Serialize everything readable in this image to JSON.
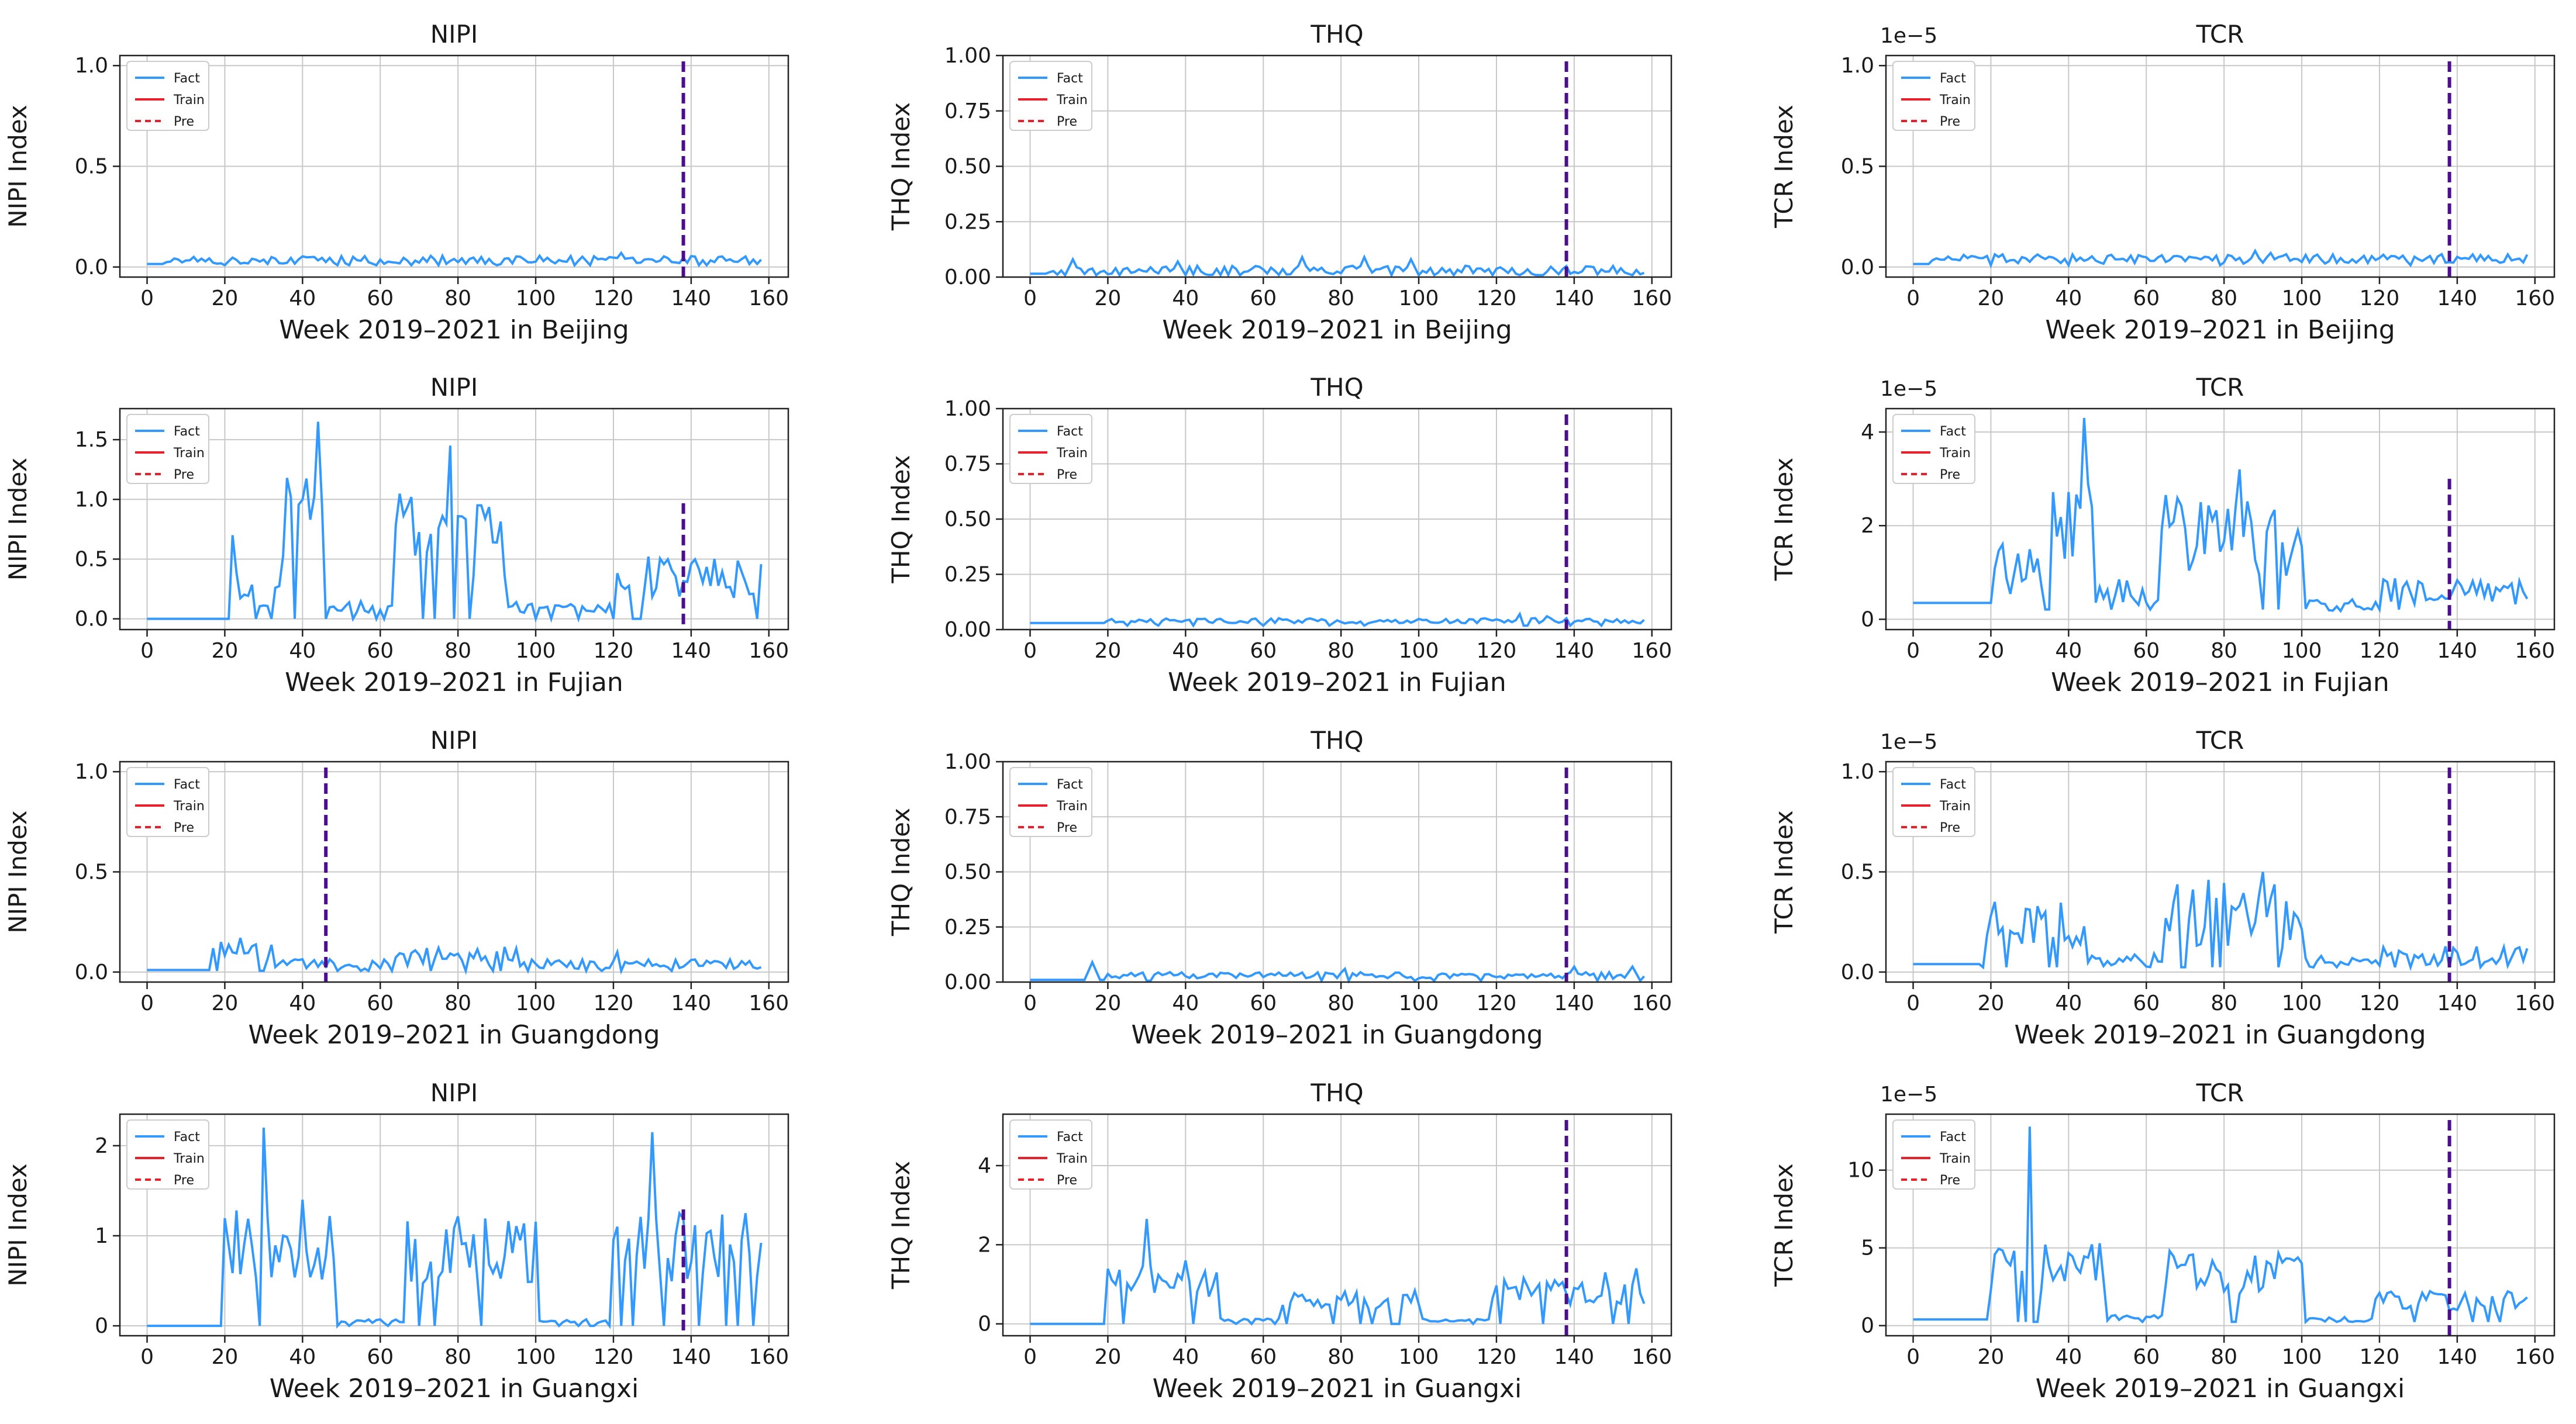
{
  "figure_title": "",
  "legend_labels": [
    "Fact",
    "Train",
    "Pre"
  ],
  "colors": {
    "fact": "#3399ff",
    "train": "#e8202a",
    "pre": "#e8202a",
    "split_line": "#4b0f8c",
    "grid": "#c8c8c8",
    "axes": "#222222"
  },
  "chart_data": [
    {
      "id": "nipi-beijing",
      "type": "line",
      "title": "NIPI",
      "xlabel": "Week 2019–2021 in Beijing",
      "ylabel": "NIPI Index",
      "xlim": [
        -7,
        165
      ],
      "xticks": [
        0,
        20,
        40,
        60,
        80,
        100,
        120,
        140,
        160
      ],
      "ylim": [
        -0.05,
        1.05
      ],
      "yticks": [
        0.0,
        0.5,
        1.0
      ],
      "ytick_labels": [
        "0.0",
        "0.5",
        "1.0"
      ],
      "offset_text": "",
      "split_week": 138,
      "profile": "bj_nipi",
      "series": [
        {
          "name": "Fact",
          "role": "fact",
          "color": "#3399ff"
        },
        {
          "name": "Train",
          "role": "train",
          "color": "#e8202a"
        },
        {
          "name": "Pre",
          "role": "pre",
          "color": "#e8202a"
        }
      ]
    },
    {
      "id": "thq-beijing",
      "type": "line",
      "title": "THQ",
      "xlabel": "Week 2019–2021 in Beijing",
      "ylabel": "THQ Index",
      "xlim": [
        -7,
        165
      ],
      "xticks": [
        0,
        20,
        40,
        60,
        80,
        100,
        120,
        140,
        160
      ],
      "ylim": [
        0,
        1.0
      ],
      "yticks": [
        0.0,
        0.25,
        0.5,
        0.75,
        1.0
      ],
      "ytick_labels": [
        "0.00",
        "0.25",
        "0.50",
        "0.75",
        "1.00"
      ],
      "offset_text": "",
      "split_week": 138,
      "profile": "bj_thq",
      "series": [
        {
          "name": "Fact",
          "role": "fact",
          "color": "#3399ff"
        },
        {
          "name": "Train",
          "role": "train",
          "color": "#e8202a"
        },
        {
          "name": "Pre",
          "role": "pre",
          "color": "#e8202a"
        }
      ]
    },
    {
      "id": "tcr-beijing",
      "type": "line",
      "title": "TCR",
      "xlabel": "Week 2019–2021 in Beijing",
      "ylabel": "TCR Index",
      "xlim": [
        -7,
        165
      ],
      "xticks": [
        0,
        20,
        40,
        60,
        80,
        100,
        120,
        140,
        160
      ],
      "ylim": [
        -0.05,
        1.05
      ],
      "yticks": [
        0.0,
        0.5,
        1.0
      ],
      "ytick_labels": [
        "0.0",
        "0.5",
        "1.0"
      ],
      "offset_text": "1e−5",
      "split_week": 138,
      "profile": "bj_tcr",
      "series": [
        {
          "name": "Fact",
          "role": "fact",
          "color": "#3399ff"
        },
        {
          "name": "Train",
          "role": "train",
          "color": "#e8202a"
        },
        {
          "name": "Pre",
          "role": "pre",
          "color": "#e8202a"
        }
      ]
    },
    {
      "id": "nipi-fujian",
      "type": "line",
      "title": "NIPI",
      "xlabel": "Week 2019–2021 in Fujian",
      "ylabel": "NIPI Index",
      "xlim": [
        -7,
        165
      ],
      "xticks": [
        0,
        20,
        40,
        60,
        80,
        100,
        120,
        140,
        160
      ],
      "ylim": [
        -0.09,
        1.76
      ],
      "yticks": [
        0.0,
        0.5,
        1.0,
        1.5
      ],
      "ytick_labels": [
        "0.0",
        "0.5",
        "1.0",
        "1.5"
      ],
      "offset_text": "",
      "split_week": 138,
      "profile": "fj_nipi",
      "series": [
        {
          "name": "Fact",
          "role": "fact",
          "color": "#3399ff"
        },
        {
          "name": "Train",
          "role": "train",
          "color": "#e8202a"
        },
        {
          "name": "Pre",
          "role": "pre",
          "color": "#e8202a"
        }
      ]
    },
    {
      "id": "thq-fujian",
      "type": "line",
      "title": "THQ",
      "xlabel": "Week 2019–2021 in Fujian",
      "ylabel": "THQ Index",
      "xlim": [
        -7,
        165
      ],
      "xticks": [
        0,
        20,
        40,
        60,
        80,
        100,
        120,
        140,
        160
      ],
      "ylim": [
        0,
        1.0
      ],
      "yticks": [
        0.0,
        0.25,
        0.5,
        0.75,
        1.0
      ],
      "ytick_labels": [
        "0.00",
        "0.25",
        "0.50",
        "0.75",
        "1.00"
      ],
      "offset_text": "",
      "split_week": 138,
      "profile": "fj_thq",
      "series": [
        {
          "name": "Fact",
          "role": "fact",
          "color": "#3399ff"
        },
        {
          "name": "Train",
          "role": "train",
          "color": "#e8202a"
        },
        {
          "name": "Pre",
          "role": "pre",
          "color": "#e8202a"
        }
      ]
    },
    {
      "id": "tcr-fujian",
      "type": "line",
      "title": "TCR",
      "xlabel": "Week 2019–2021 in Fujian",
      "ylabel": "TCR Index",
      "xlim": [
        -7,
        165
      ],
      "xticks": [
        0,
        20,
        40,
        60,
        80,
        100,
        120,
        140,
        160
      ],
      "ylim": [
        -0.22,
        4.5
      ],
      "yticks": [
        0,
        2,
        4
      ],
      "ytick_labels": [
        "0",
        "2",
        "4"
      ],
      "offset_text": "1e−5",
      "split_week": 138,
      "profile": "fj_tcr",
      "series": [
        {
          "name": "Fact",
          "role": "fact",
          "color": "#3399ff"
        },
        {
          "name": "Train",
          "role": "train",
          "color": "#e8202a"
        },
        {
          "name": "Pre",
          "role": "pre",
          "color": "#e8202a"
        }
      ]
    },
    {
      "id": "nipi-guangdong",
      "type": "line",
      "title": "NIPI",
      "xlabel": "Week 2019–2021 in Guangdong",
      "ylabel": "NIPI Index",
      "xlim": [
        -7,
        165
      ],
      "xticks": [
        0,
        20,
        40,
        60,
        80,
        100,
        120,
        140,
        160
      ],
      "ylim": [
        -0.05,
        1.05
      ],
      "yticks": [
        0.0,
        0.5,
        1.0
      ],
      "ytick_labels": [
        "0.0",
        "0.5",
        "1.0"
      ],
      "offset_text": "",
      "split_week": 46,
      "profile": "gd_nipi",
      "series": [
        {
          "name": "Fact",
          "role": "fact",
          "color": "#3399ff"
        },
        {
          "name": "Train",
          "role": "train",
          "color": "#e8202a"
        },
        {
          "name": "Pre",
          "role": "pre",
          "color": "#e8202a"
        }
      ]
    },
    {
      "id": "thq-guangdong",
      "type": "line",
      "title": "THQ",
      "xlabel": "Week 2019–2021 in Guangdong",
      "ylabel": "THQ Index",
      "xlim": [
        -7,
        165
      ],
      "xticks": [
        0,
        20,
        40,
        60,
        80,
        100,
        120,
        140,
        160
      ],
      "ylim": [
        0,
        1.0
      ],
      "yticks": [
        0.0,
        0.25,
        0.5,
        0.75,
        1.0
      ],
      "ytick_labels": [
        "0.00",
        "0.25",
        "0.50",
        "0.75",
        "1.00"
      ],
      "offset_text": "",
      "split_week": 138,
      "profile": "gd_thq",
      "series": [
        {
          "name": "Fact",
          "role": "fact",
          "color": "#3399ff"
        },
        {
          "name": "Train",
          "role": "train",
          "color": "#e8202a"
        },
        {
          "name": "Pre",
          "role": "pre",
          "color": "#e8202a"
        }
      ]
    },
    {
      "id": "tcr-guangdong",
      "type": "line",
      "title": "TCR",
      "xlabel": "Week 2019–2021 in Guangdong",
      "ylabel": "TCR Index",
      "xlim": [
        -7,
        165
      ],
      "xticks": [
        0,
        20,
        40,
        60,
        80,
        100,
        120,
        140,
        160
      ],
      "ylim": [
        -0.05,
        1.05
      ],
      "yticks": [
        0.0,
        0.5,
        1.0
      ],
      "ytick_labels": [
        "0.0",
        "0.5",
        "1.0"
      ],
      "offset_text": "1e−5",
      "split_week": 138,
      "profile": "gd_tcr",
      "series": [
        {
          "name": "Fact",
          "role": "fact",
          "color": "#3399ff"
        },
        {
          "name": "Train",
          "role": "train",
          "color": "#e8202a"
        },
        {
          "name": "Pre",
          "role": "pre",
          "color": "#e8202a"
        }
      ]
    },
    {
      "id": "nipi-guangxi",
      "type": "line",
      "title": "NIPI",
      "xlabel": "Week 2019–2021 in Guangxi",
      "ylabel": "NIPI Index",
      "xlim": [
        -7,
        165
      ],
      "xticks": [
        0,
        20,
        40,
        60,
        80,
        100,
        120,
        140,
        160
      ],
      "ylim": [
        -0.11,
        2.35
      ],
      "yticks": [
        0,
        1,
        2
      ],
      "ytick_labels": [
        "0",
        "1",
        "2"
      ],
      "offset_text": "",
      "split_week": 138,
      "profile": "gx_nipi",
      "series": [
        {
          "name": "Fact",
          "role": "fact",
          "color": "#3399ff"
        },
        {
          "name": "Train",
          "role": "train",
          "color": "#e8202a"
        },
        {
          "name": "Pre",
          "role": "pre",
          "color": "#e8202a"
        }
      ]
    },
    {
      "id": "thq-guangxi",
      "type": "line",
      "title": "THQ",
      "xlabel": "Week 2019–2021 in Guangxi",
      "ylabel": "THQ Index",
      "xlim": [
        -7,
        165
      ],
      "xticks": [
        0,
        20,
        40,
        60,
        80,
        100,
        120,
        140,
        160
      ],
      "ylim": [
        -0.3,
        5.3
      ],
      "yticks": [
        0,
        2,
        4
      ],
      "ytick_labels": [
        "0",
        "2",
        "4"
      ],
      "offset_text": "",
      "split_week": 138,
      "profile": "gx_thq",
      "series": [
        {
          "name": "Fact",
          "role": "fact",
          "color": "#3399ff"
        },
        {
          "name": "Train",
          "role": "train",
          "color": "#e8202a"
        },
        {
          "name": "Pre",
          "role": "pre",
          "color": "#e8202a"
        }
      ]
    },
    {
      "id": "tcr-guangxi",
      "type": "line",
      "title": "TCR",
      "xlabel": "Week 2019–2021 in Guangxi",
      "ylabel": "TCR Index",
      "xlim": [
        -7,
        165
      ],
      "xticks": [
        0,
        20,
        40,
        60,
        80,
        100,
        120,
        140,
        160
      ],
      "ylim": [
        -0.65,
        13.6
      ],
      "yticks": [
        0,
        5,
        10
      ],
      "ytick_labels": [
        "0",
        "5",
        "10"
      ],
      "offset_text": "1e−5",
      "split_week": 138,
      "profile": "gx_tcr",
      "series": [
        {
          "name": "Fact",
          "role": "fact",
          "color": "#3399ff"
        },
        {
          "name": "Train",
          "role": "train",
          "color": "#e8202a"
        },
        {
          "name": "Pre",
          "role": "pre",
          "color": "#e8202a"
        }
      ]
    }
  ]
}
